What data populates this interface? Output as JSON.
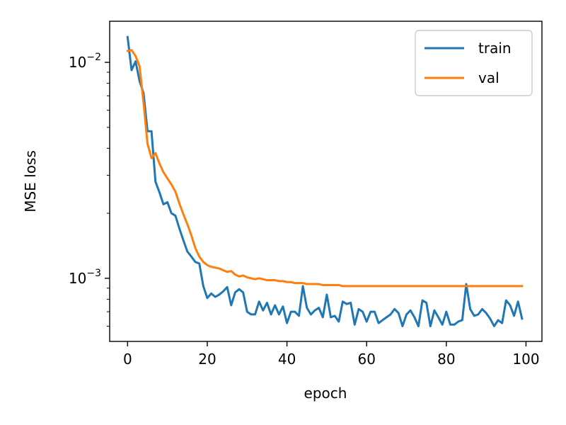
{
  "chart_data": {
    "type": "line",
    "xlabel": "epoch",
    "ylabel": "MSE loss",
    "yscale": "log",
    "xlim": [
      -4.5,
      104
    ],
    "ylim": [
      0.00051,
      0.0155
    ],
    "x_ticks": [
      0,
      20,
      40,
      60,
      80,
      100
    ],
    "y_major_ticks": [
      {
        "value": 0.01,
        "base": "10",
        "exp": "−2"
      },
      {
        "value": 0.001,
        "base": "10",
        "exp": "−3"
      }
    ],
    "y_minor_ticks": [
      0.0006,
      0.0007,
      0.0008,
      0.0009,
      0.002,
      0.003,
      0.004,
      0.005,
      0.006,
      0.007,
      0.008,
      0.009
    ],
    "grid": false,
    "legend_position": "top-right",
    "colors": {
      "train": "#1f77b4",
      "val": "#ff7f0e"
    },
    "series": [
      {
        "name": "train",
        "values": [
          0.0131,
          0.0092,
          0.0101,
          0.0082,
          0.0072,
          0.0048,
          0.0048,
          0.0028,
          0.0025,
          0.0022,
          0.00225,
          0.002,
          0.00195,
          0.0017,
          0.0015,
          0.00133,
          0.00126,
          0.00119,
          0.00117,
          0.00092,
          0.00081,
          0.00085,
          0.00082,
          0.00084,
          0.00087,
          0.00091,
          0.00075,
          0.00086,
          0.00089,
          0.00086,
          0.0007,
          0.00068,
          0.00068,
          0.00078,
          0.00071,
          0.00077,
          0.00068,
          0.00075,
          0.00068,
          0.00074,
          0.00062,
          0.0007,
          0.0007,
          0.00067,
          0.00092,
          0.00073,
          0.00068,
          0.00071,
          0.00073,
          0.00066,
          0.00084,
          0.00066,
          0.00067,
          0.00063,
          0.00078,
          0.00076,
          0.00077,
          0.00061,
          0.00072,
          0.0007,
          0.00063,
          0.0007,
          0.0007,
          0.00062,
          0.00064,
          0.00066,
          0.00068,
          0.00072,
          0.00069,
          0.0006,
          0.00068,
          0.00071,
          0.00066,
          0.0006,
          0.00079,
          0.00077,
          0.0006,
          0.00071,
          0.00066,
          0.00061,
          0.0007,
          0.00061,
          0.00061,
          0.00063,
          0.00064,
          0.00094,
          0.00072,
          0.00067,
          0.00068,
          0.00072,
          0.00069,
          0.00065,
          0.0006,
          0.00064,
          0.00062,
          0.00079,
          0.00075,
          0.00067,
          0.00078,
          0.00065
        ]
      },
      {
        "name": "val",
        "values": [
          0.0113,
          0.0114,
          0.0107,
          0.0096,
          0.0065,
          0.0042,
          0.0036,
          0.0038,
          0.0034,
          0.0031,
          0.0029,
          0.00272,
          0.00252,
          0.00222,
          0.00198,
          0.00178,
          0.00158,
          0.00138,
          0.00126,
          0.00119,
          0.00115,
          0.00113,
          0.00112,
          0.00111,
          0.00109,
          0.00107,
          0.00108,
          0.00104,
          0.00102,
          0.00103,
          0.00101,
          0.001,
          0.00099,
          0.001,
          0.00099,
          0.00098,
          0.00098,
          0.00098,
          0.00097,
          0.00097,
          0.00096,
          0.00096,
          0.00095,
          0.00095,
          0.00095,
          0.00094,
          0.00094,
          0.00094,
          0.00094,
          0.00093,
          0.00093,
          0.00093,
          0.00093,
          0.00093,
          0.00092,
          0.00092,
          0.00092,
          0.00092,
          0.00092,
          0.00092,
          0.00092,
          0.00092,
          0.00092,
          0.00092,
          0.00092,
          0.00092,
          0.00092,
          0.00092,
          0.00092,
          0.00092,
          0.00092,
          0.00092,
          0.00092,
          0.00092,
          0.00092,
          0.00092,
          0.00092,
          0.00092,
          0.00092,
          0.00092,
          0.00092,
          0.00092,
          0.00092,
          0.00092,
          0.00092,
          0.00092,
          0.00092,
          0.00092,
          0.00092,
          0.00092,
          0.00092,
          0.00092,
          0.00092,
          0.00092,
          0.00092,
          0.00092,
          0.00092,
          0.00092,
          0.00092,
          0.00092
        ]
      }
    ]
  }
}
